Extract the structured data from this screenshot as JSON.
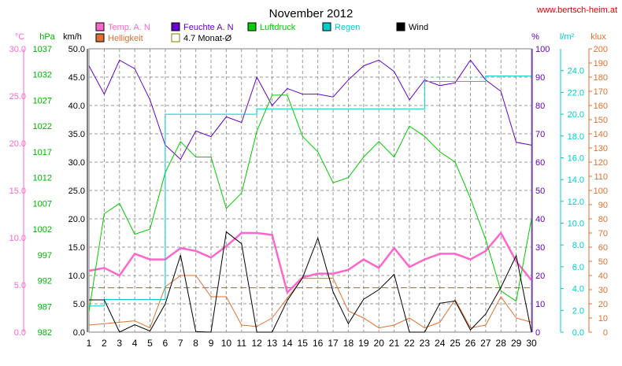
{
  "chart_data": {
    "type": "line",
    "title": "November 2012",
    "source": "www.bertsch-heim.at",
    "x": [
      1,
      2,
      3,
      4,
      5,
      6,
      7,
      8,
      9,
      10,
      11,
      12,
      13,
      14,
      15,
      16,
      17,
      18,
      19,
      20,
      21,
      22,
      23,
      24,
      25,
      26,
      27,
      28,
      29,
      30
    ],
    "axes": [
      {
        "key": "temp",
        "unit": "°C",
        "color": "#ff66cc",
        "min": 0,
        "max": 30,
        "ticks": [
          "0.0",
          "5.0",
          "10.0",
          "15.0",
          "20.0",
          "25.0",
          "30.0"
        ]
      },
      {
        "key": "hpa",
        "unit": "hPa",
        "color": "#00b400",
        "min": 982,
        "max": 1037,
        "ticks": [
          "982",
          "987",
          "992",
          "997",
          "1002",
          "1007",
          "1012",
          "1017",
          "1022",
          "1027",
          "1032",
          "1037"
        ]
      },
      {
        "key": "kmh",
        "unit": "km/h",
        "color": "#000000",
        "min": 0,
        "max": 50,
        "ticks": [
          "0.0",
          "5.0",
          "10.0",
          "15.0",
          "20.0",
          "25.0",
          "30.0",
          "35.0",
          "40.0",
          "45.0",
          "50.0"
        ]
      },
      {
        "key": "pct",
        "unit": "%",
        "color": "#6600cc",
        "min": 0,
        "max": 100,
        "ticks": [
          "0",
          "10",
          "20",
          "30",
          "40",
          "50",
          "60",
          "70",
          "80",
          "90",
          "100"
        ]
      },
      {
        "key": "lm2",
        "unit": "l/m²",
        "color": "#00cccc",
        "min": 0,
        "max": 26,
        "ticks": [
          "0.0",
          "2.0",
          "4.0",
          "6.0",
          "8.0",
          "10.0",
          "12.0",
          "14.0",
          "16.0",
          "18.0",
          "20.0",
          "22.0",
          "24.0"
        ]
      },
      {
        "key": "klux",
        "unit": "klux",
        "color": "#e07030",
        "min": 0,
        "max": 200,
        "ticks": [
          "0",
          "10",
          "20",
          "30",
          "40",
          "50",
          "60",
          "70",
          "80",
          "90",
          "100",
          "110",
          "120",
          "130",
          "140",
          "150",
          "160",
          "170",
          "180",
          "190",
          "200"
        ]
      }
    ],
    "series": [
      {
        "name": "Temp. A. N",
        "axis": "temp",
        "color": "#ff66cc",
        "values": [
          6.5,
          6.8,
          6.0,
          8.3,
          7.7,
          7.7,
          8.9,
          8.6,
          7.9,
          9.1,
          10.5,
          10.5,
          10.3,
          4.2,
          5.8,
          6.2,
          6.2,
          6.6,
          7.7,
          6.8,
          8.9,
          6.9,
          7.7,
          8.3,
          8.3,
          7.7,
          8.6,
          10.5,
          7.5,
          5.5
        ]
      },
      {
        "name": "Feuchte A. N",
        "axis": "pct",
        "color": "#6600cc",
        "values": [
          94,
          84,
          96,
          93,
          82,
          66,
          61,
          71,
          69,
          76,
          74,
          90,
          80,
          86,
          84,
          84,
          83,
          89,
          94,
          96,
          92,
          82,
          89,
          87,
          88,
          96,
          89,
          85,
          67,
          66
        ]
      },
      {
        "name": "Luftdruck",
        "axis": "hpa",
        "color": "#00cc00",
        "values": [
          986,
          1005,
          1007,
          1001,
          1002,
          1013,
          1019,
          1016,
          1016,
          1006,
          1009,
          1021,
          1028,
          1028,
          1020,
          1017,
          1011,
          1012,
          1016,
          1019,
          1016,
          1022,
          1020,
          1017,
          1015,
          1008,
          1000,
          990,
          988,
          1004
        ]
      },
      {
        "name": "Helligkeit",
        "axis": "klux",
        "color": "#e07030",
        "values": [
          5,
          6,
          7,
          8,
          3,
          32,
          40,
          40,
          25,
          25,
          5,
          4,
          10,
          24,
          38,
          38,
          38,
          15,
          10,
          3,
          5,
          10,
          3,
          7,
          23,
          3,
          5,
          25,
          10,
          7
        ]
      },
      {
        "name": "Regen",
        "axis": "lm2",
        "color": "#00cccc",
        "values": [
          2.4,
          3.0,
          3.0,
          3.0,
          3.0,
          20.0,
          20.0,
          20.0,
          20.0,
          20.0,
          20.0,
          20.5,
          20.5,
          20.5,
          20.5,
          20.5,
          20.5,
          20.5,
          20.5,
          20.5,
          20.5,
          20.5,
          23.0,
          23.0,
          23.0,
          23.0,
          23.5,
          23.5,
          23.5,
          23.5
        ]
      },
      {
        "name": "Wind",
        "axis": "kmh",
        "color": "#000000",
        "values": [
          5.7,
          5.7,
          0.0,
          1.3,
          0.2,
          5.0,
          13.6,
          0.1,
          0.0,
          17.7,
          15.6,
          0.0,
          0.0,
          5.6,
          9.6,
          16.6,
          7.1,
          1.5,
          5.8,
          7.5,
          10.2,
          0.0,
          0.0,
          5.1,
          5.5,
          0.4,
          3.2,
          7.9,
          13.5,
          0.0
        ]
      }
    ],
    "average": {
      "name": "4.7 Monat-Ø",
      "axis": "temp",
      "value": 4.7,
      "color": "#808000"
    },
    "grid": true,
    "legend": "top"
  }
}
